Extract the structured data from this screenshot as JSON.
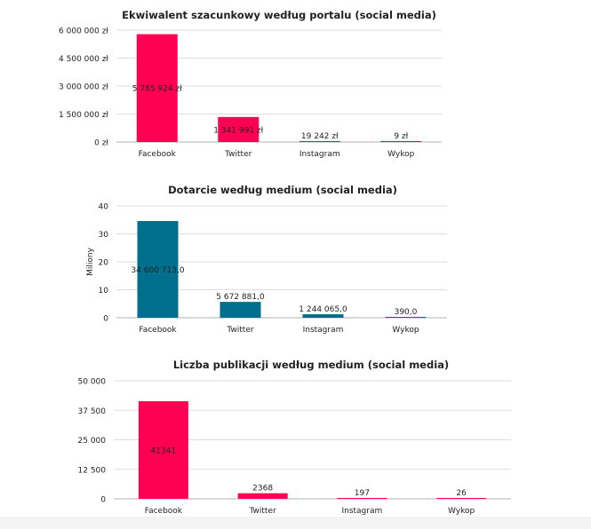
{
  "chart_data": [
    {
      "type": "bar",
      "title": "Ekwiwalent szacunkowy według portalu (social media)",
      "categories": [
        "Facebook",
        "Twitter",
        "Instagram",
        "Wykop"
      ],
      "values": [
        5785924,
        1341991,
        19242,
        9
      ],
      "data_labels": [
        "5 785 924 zł",
        "1 341 991 zł",
        "19 242 zł",
        "9 zł"
      ],
      "yticks": [
        0,
        1500000,
        3000000,
        4500000,
        6000000
      ],
      "ytick_labels": [
        "0 zł",
        "1 500 000 zł",
        "3 000 000 zł",
        "4 500 000 zł",
        "6 000 000 zł"
      ],
      "ylim": [
        0,
        6000000
      ],
      "ylabel": "",
      "xlabel": "",
      "color": "#ff0055",
      "grid": true
    },
    {
      "type": "bar",
      "title": "Dotarcie według medium (social media)",
      "categories": [
        "Facebook",
        "Twitter",
        "Instagram",
        "Wykop"
      ],
      "values": [
        34600713,
        5672881,
        1244065,
        390
      ],
      "data_labels": [
        "34 600 713,0",
        "5 672 881,0",
        "1 244 065,0",
        "390,0"
      ],
      "yticks": [
        0,
        10000000,
        20000000,
        30000000,
        40000000
      ],
      "ytick_labels": [
        "0",
        "10",
        "20",
        "30",
        "40"
      ],
      "ylim": [
        0,
        40000000
      ],
      "ylabel": "Miliony",
      "xlabel": "",
      "color": "#006f8e",
      "grid": true
    },
    {
      "type": "bar",
      "title": "Liczba publikacji według medium (social media)",
      "categories": [
        "Facebook",
        "Twitter",
        "Instagram",
        "Wykop"
      ],
      "values": [
        41341,
        2368,
        197,
        26
      ],
      "data_labels": [
        "41341",
        "2368",
        "197",
        "26"
      ],
      "yticks": [
        0,
        12500,
        25000,
        37500,
        50000
      ],
      "ytick_labels": [
        "0",
        "12 500",
        "25 000",
        "37 500",
        "50 000"
      ],
      "ylim": [
        0,
        50000
      ],
      "ylabel": "",
      "xlabel": "",
      "color": "#ff0055",
      "grid": true
    }
  ]
}
